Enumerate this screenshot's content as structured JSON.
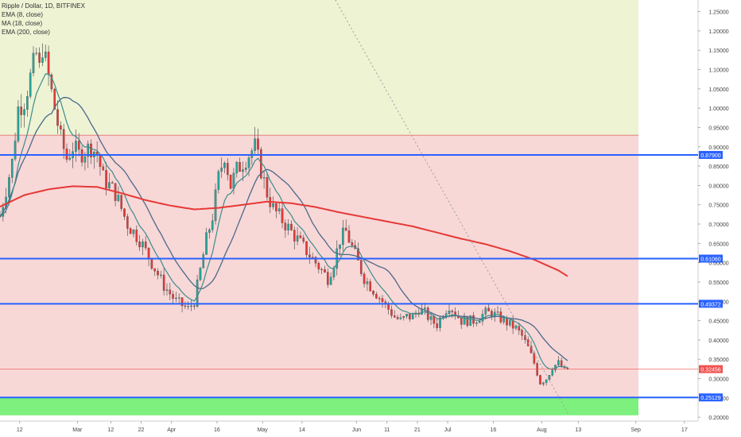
{
  "legend": {
    "title": "Ripple / Dollar, 1D, BITFINEX",
    "ind1": "EMA (8, close)",
    "ind2": "MA (18, close)",
    "ind3": "EMA (200, close)"
  },
  "chart_data": {
    "type": "candlestick",
    "symbol": "Ripple / Dollar, 1D, BITFINEX",
    "ylim": [
      0.19,
      1.28
    ],
    "y_ticks": [
      "1.25000",
      "1.20000",
      "1.15000",
      "1.10000",
      "1.05000",
      "1.00000",
      "0.95000",
      "0.90000",
      "0.85000",
      "0.80000",
      "0.75000",
      "0.70000",
      "0.65000",
      "0.60000",
      "0.55000",
      "0.50000",
      "0.45000",
      "0.40000",
      "0.35000",
      "0.30000",
      "0.25000",
      "0.20000"
    ],
    "x_ticks": [
      {
        "label": "12",
        "day": 12
      },
      {
        "label": "Mar",
        "day": 31
      },
      {
        "label": "12",
        "day": 42
      },
      {
        "label": "22",
        "day": 52
      },
      {
        "label": "Apr",
        "day": 62
      },
      {
        "label": "16",
        "day": 77
      },
      {
        "label": "May",
        "day": 92
      },
      {
        "label": "14",
        "day": 105
      },
      {
        "label": "Jun",
        "day": 123
      },
      {
        "label": "11",
        "day": 133
      },
      {
        "label": "21",
        "day": 143
      },
      {
        "label": "Jul",
        "day": 153
      },
      {
        "label": "16",
        "day": 168
      },
      {
        "label": "Aug",
        "day": 184
      },
      {
        "label": "13",
        "day": 196
      },
      {
        "label": "Sep",
        "day": 215
      },
      {
        "label": "17",
        "day": 231
      }
    ],
    "horizontal_levels": [
      {
        "value": 0.879,
        "label": "0.87900",
        "color": "#2962ff"
      },
      {
        "value": 0.6106,
        "label": "0.61060",
        "color": "#2962ff"
      },
      {
        "value": 0.4937,
        "label": "0.49372",
        "color": "#2962ff"
      },
      {
        "value": 0.2513,
        "label": "0.25129",
        "color": "#2962ff"
      }
    ],
    "last_price": {
      "value": 0.3246,
      "label": "0.32456",
      "color": "#ef5350"
    },
    "zones": [
      {
        "from": 0.93,
        "to": 1.28,
        "color": "#eef3d4"
      },
      {
        "from": 0.25,
        "to": 0.93,
        "color": "#f8d7d7"
      },
      {
        "from": 0.205,
        "to": 0.25,
        "color": "#7ef07e"
      }
    ],
    "close_anchors": [
      [
        0,
        0.72
      ],
      [
        4,
        0.86
      ],
      [
        6,
        1.0
      ],
      [
        8,
        1.02
      ],
      [
        10,
        1.08
      ],
      [
        12,
        1.14
      ],
      [
        13,
        1.1
      ],
      [
        14,
        1.16
      ],
      [
        16,
        1.08
      ],
      [
        18,
        1.0
      ],
      [
        20,
        0.92
      ],
      [
        22,
        0.87
      ],
      [
        24,
        0.9
      ],
      [
        26,
        0.88
      ],
      [
        28,
        0.89
      ],
      [
        30,
        0.9
      ],
      [
        32,
        0.88
      ],
      [
        34,
        0.82
      ],
      [
        36,
        0.8
      ],
      [
        38,
        0.78
      ],
      [
        40,
        0.74
      ],
      [
        42,
        0.7
      ],
      [
        44,
        0.68
      ],
      [
        46,
        0.66
      ],
      [
        48,
        0.63
      ],
      [
        50,
        0.6
      ],
      [
        52,
        0.57
      ],
      [
        54,
        0.54
      ],
      [
        56,
        0.52
      ],
      [
        58,
        0.5
      ],
      [
        60,
        0.49
      ],
      [
        62,
        0.48
      ],
      [
        64,
        0.5
      ],
      [
        66,
        0.58
      ],
      [
        68,
        0.66
      ],
      [
        70,
        0.72
      ],
      [
        72,
        0.82
      ],
      [
        74,
        0.88
      ],
      [
        76,
        0.8
      ],
      [
        78,
        0.84
      ],
      [
        80,
        0.86
      ],
      [
        82,
        0.88
      ],
      [
        84,
        0.9
      ],
      [
        86,
        0.84
      ],
      [
        88,
        0.78
      ],
      [
        90,
        0.74
      ],
      [
        92,
        0.72
      ],
      [
        94,
        0.7
      ],
      [
        96,
        0.68
      ],
      [
        98,
        0.66
      ],
      [
        100,
        0.64
      ],
      [
        102,
        0.62
      ],
      [
        104,
        0.6
      ],
      [
        106,
        0.58
      ],
      [
        108,
        0.56
      ],
      [
        110,
        0.6
      ],
      [
        112,
        0.66
      ],
      [
        114,
        0.68
      ],
      [
        116,
        0.64
      ],
      [
        118,
        0.6
      ],
      [
        120,
        0.56
      ],
      [
        122,
        0.54
      ],
      [
        124,
        0.52
      ],
      [
        126,
        0.5
      ],
      [
        128,
        0.48
      ],
      [
        130,
        0.46
      ],
      [
        132,
        0.45
      ],
      [
        134,
        0.46
      ],
      [
        136,
        0.46
      ],
      [
        138,
        0.48
      ],
      [
        140,
        0.47
      ],
      [
        142,
        0.45
      ],
      [
        144,
        0.44
      ],
      [
        146,
        0.47
      ],
      [
        148,
        0.49
      ],
      [
        150,
        0.47
      ],
      [
        152,
        0.45
      ],
      [
        154,
        0.45
      ],
      [
        156,
        0.45
      ],
      [
        158,
        0.46
      ],
      [
        160,
        0.47
      ],
      [
        162,
        0.47
      ],
      [
        164,
        0.46
      ],
      [
        166,
        0.45
      ],
      [
        168,
        0.44
      ],
      [
        170,
        0.43
      ],
      [
        172,
        0.41
      ],
      [
        174,
        0.38
      ],
      [
        176,
        0.34
      ],
      [
        178,
        0.29
      ],
      [
        180,
        0.3
      ],
      [
        182,
        0.33
      ],
      [
        184,
        0.34
      ],
      [
        186,
        0.32
      ],
      [
        187,
        0.325
      ]
    ],
    "ema200_anchors": [
      [
        0,
        0.745
      ],
      [
        8,
        0.775
      ],
      [
        16,
        0.79
      ],
      [
        24,
        0.798
      ],
      [
        32,
        0.796
      ],
      [
        40,
        0.78
      ],
      [
        48,
        0.762
      ],
      [
        56,
        0.748
      ],
      [
        64,
        0.738
      ],
      [
        72,
        0.742
      ],
      [
        80,
        0.75
      ],
      [
        88,
        0.758
      ],
      [
        96,
        0.754
      ],
      [
        104,
        0.744
      ],
      [
        112,
        0.73
      ],
      [
        120,
        0.718
      ],
      [
        128,
        0.706
      ],
      [
        136,
        0.694
      ],
      [
        144,
        0.678
      ],
      [
        152,
        0.662
      ],
      [
        160,
        0.648
      ],
      [
        168,
        0.63
      ],
      [
        176,
        0.608
      ],
      [
        184,
        0.58
      ],
      [
        187,
        0.565
      ]
    ],
    "trendline": {
      "from": [
        116,
        1.28
      ],
      "to": [
        193,
        0.205
      ],
      "style": "dotted"
    }
  }
}
